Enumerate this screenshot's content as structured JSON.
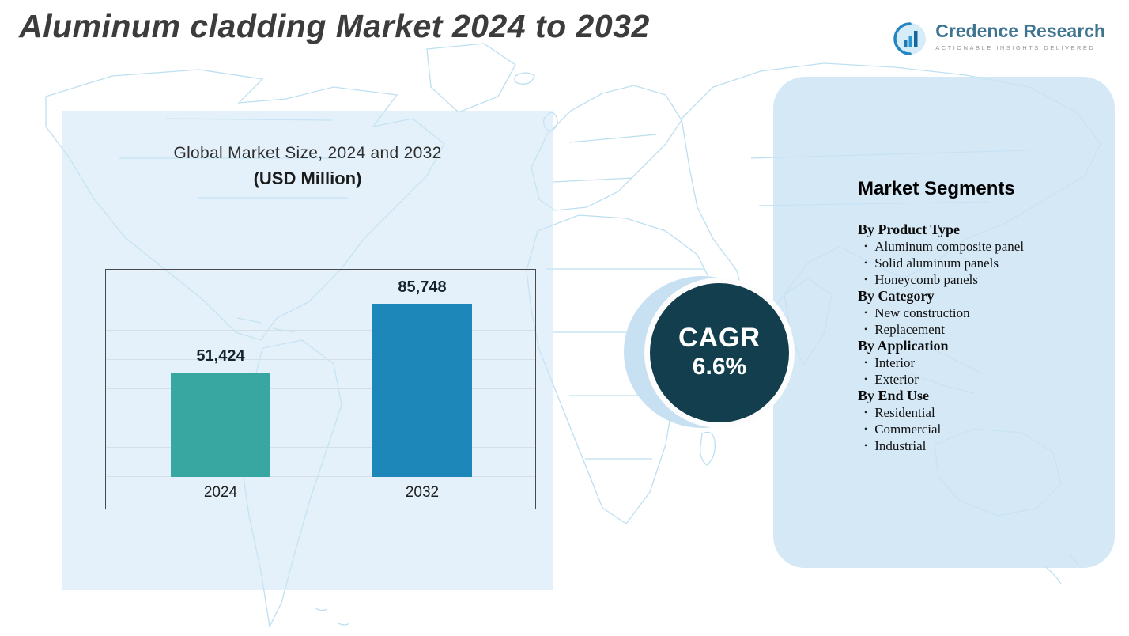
{
  "page": {
    "title": "Aluminum cladding Market 2024 to 2032"
  },
  "logo": {
    "name": "Credence Research",
    "tagline": "ACTIONABLE INSIGHTS DELIVERED",
    "icon": "bar-chart-circle-icon"
  },
  "chart_data": {
    "type": "bar",
    "title": "Global Market Size, 2024 and 2032",
    "subtitle": "(USD Million)",
    "categories": [
      "2024",
      "2032"
    ],
    "values": [
      51424,
      85748
    ],
    "value_labels": [
      "51,424",
      "85,748"
    ],
    "bar_colors": [
      "#38a7a2",
      "#1d87ba"
    ],
    "ylim": [
      0,
      95000
    ],
    "grid": "horizontal",
    "legend": "none"
  },
  "cagr_badge": {
    "label": "CAGR",
    "value": "6.6%",
    "background": "#123e4e",
    "text_color": "#ffffff"
  },
  "segments_panel": {
    "title": "Market Segments",
    "background": "#d9eaf6",
    "groups": [
      {
        "label": "By Product Type",
        "items": [
          "Aluminum composite panel",
          "Solid aluminum panels",
          "Honeycomb panels"
        ]
      },
      {
        "label": "By Category",
        "items": [
          "New construction",
          "Replacement"
        ]
      },
      {
        "label": "By Application",
        "items": [
          "Interior",
          "Exterior"
        ]
      },
      {
        "label": "By End Use",
        "items": [
          "Residential",
          "Commercial",
          "Industrial"
        ]
      }
    ]
  },
  "colors": {
    "map_outline": "#b9def0",
    "left_panel_bg": "#e2eef8",
    "title_text": "#3c3c3c",
    "logo_text": "#3e7492"
  }
}
